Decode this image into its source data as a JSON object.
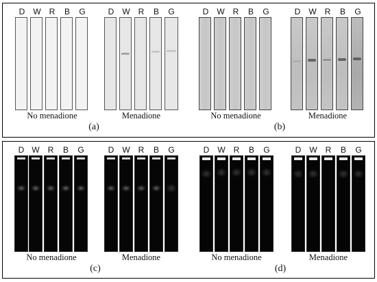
{
  "figure": {
    "lanes": [
      "D",
      "W",
      "R",
      "B",
      "G"
    ],
    "group_labels": {
      "no_menadione": "No menadione",
      "menadione": "Menadione"
    },
    "panel_labels": [
      "(a)",
      "(b)",
      "(c)",
      "(d)"
    ],
    "colors": {
      "light_strip": "#f3f3f3",
      "gray_strip": "#c8c8c8",
      "dark_strip": "#060606",
      "frame": "#000000"
    }
  }
}
